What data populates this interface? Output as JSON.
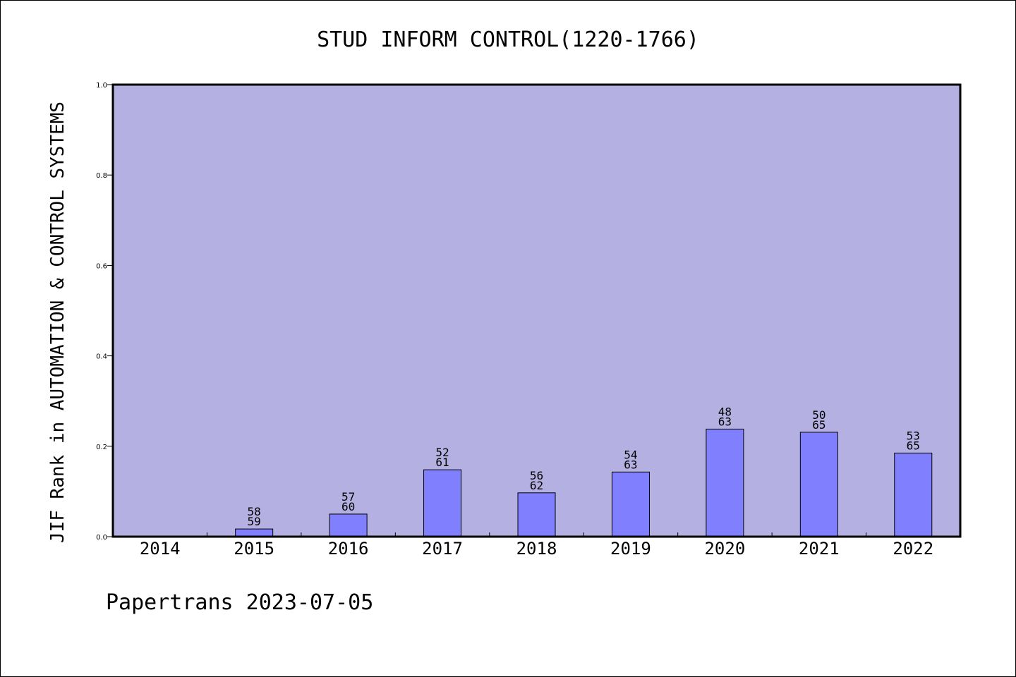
{
  "chart_data": {
    "type": "bar",
    "title": "STUD INFORM CONTROL(1220-1766)",
    "xlabel": "",
    "ylabel": "JIF Rank in AUTOMATION & CONTROL SYSTEMS",
    "ylim": [
      0,
      1.0
    ],
    "yticks": [
      "0.0",
      "0.2",
      "0.4",
      "0.6",
      "0.8",
      "1.0"
    ],
    "categories": [
      "2014",
      "2015",
      "2016",
      "2017",
      "2018",
      "2019",
      "2020",
      "2021",
      "2022"
    ],
    "values": [
      null,
      0.017,
      0.05,
      0.148,
      0.097,
      0.143,
      0.238,
      0.231,
      0.185
    ],
    "rank_labels": [
      null,
      [
        "58",
        "59"
      ],
      [
        "57",
        "60"
      ],
      [
        "52",
        "61"
      ],
      [
        "56",
        "62"
      ],
      [
        "54",
        "63"
      ],
      [
        "48",
        "63"
      ],
      [
        "50",
        "65"
      ],
      [
        "53",
        "65"
      ]
    ],
    "grid": false,
    "colors": {
      "plot_background": "#b5b0e2",
      "bar_fill": "#8080ff",
      "bar_edge": "#000000"
    }
  },
  "footer": {
    "text": "Papertrans 2023-07-05"
  }
}
